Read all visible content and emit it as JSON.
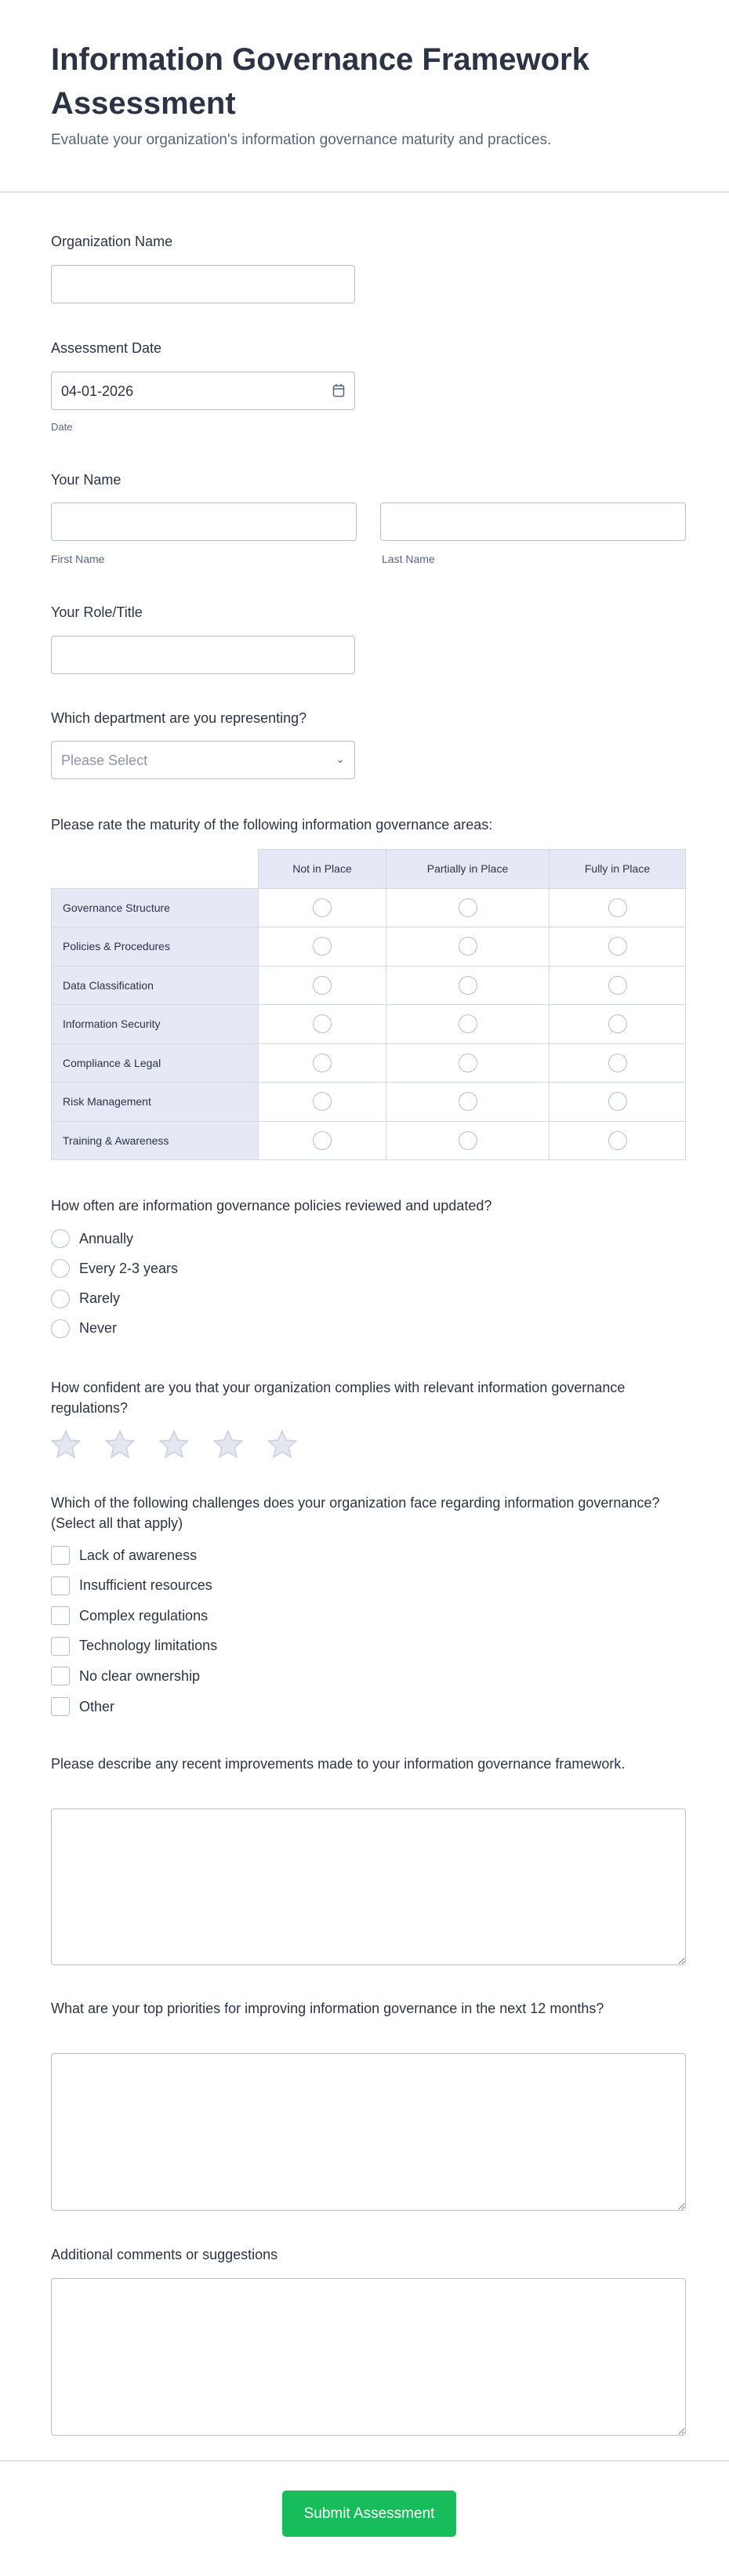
{
  "header": {
    "title": "Information Governance Framework Assessment",
    "subtitle": "Evaluate your organization's information governance maturity and practices."
  },
  "org": {
    "label": "Organization Name",
    "value": ""
  },
  "date": {
    "label": "Assessment Date",
    "value": "04-01-2026",
    "sublabel": "Date",
    "icon": "calendar-icon"
  },
  "name": {
    "label": "Your Name",
    "first_sublabel": "First Name",
    "last_sublabel": "Last Name"
  },
  "role": {
    "label": "Your Role/Title"
  },
  "department": {
    "label": "Which department are you representing?",
    "placeholder": "Please Select"
  },
  "matrix": {
    "label": "Please rate the maturity of the following information governance areas:",
    "columns": [
      "Not in Place",
      "Partially in Place",
      "Fully in Place"
    ],
    "rows": [
      "Governance Structure",
      "Policies & Procedures",
      "Data Classification",
      "Information Security",
      "Compliance & Legal",
      "Risk Management",
      "Training & Awareness"
    ]
  },
  "frequency": {
    "label": "How often are information governance policies reviewed and updated?",
    "options": [
      "Annually",
      "Every 2-3 years",
      "Rarely",
      "Never"
    ]
  },
  "confidence": {
    "label": "How confident are you that your organization complies with relevant information governance regulations?",
    "max_stars": 5,
    "rating": 0
  },
  "challenges": {
    "label": "Which of the following challenges does your organization face regarding information governance? (Select all that apply)",
    "options": [
      "Lack of awareness",
      "Insufficient resources",
      "Complex regulations",
      "Technology limitations",
      "No clear ownership",
      "Other"
    ]
  },
  "improvements": {
    "label": "Please describe any recent improvements made to your information governance framework."
  },
  "priorities": {
    "label": "What are your top priorities for improving information governance in the next 12 months?"
  },
  "comments": {
    "label": "Additional comments or suggestions"
  },
  "submit": {
    "label": "Submit Assessment",
    "color": "#18bd5b"
  }
}
